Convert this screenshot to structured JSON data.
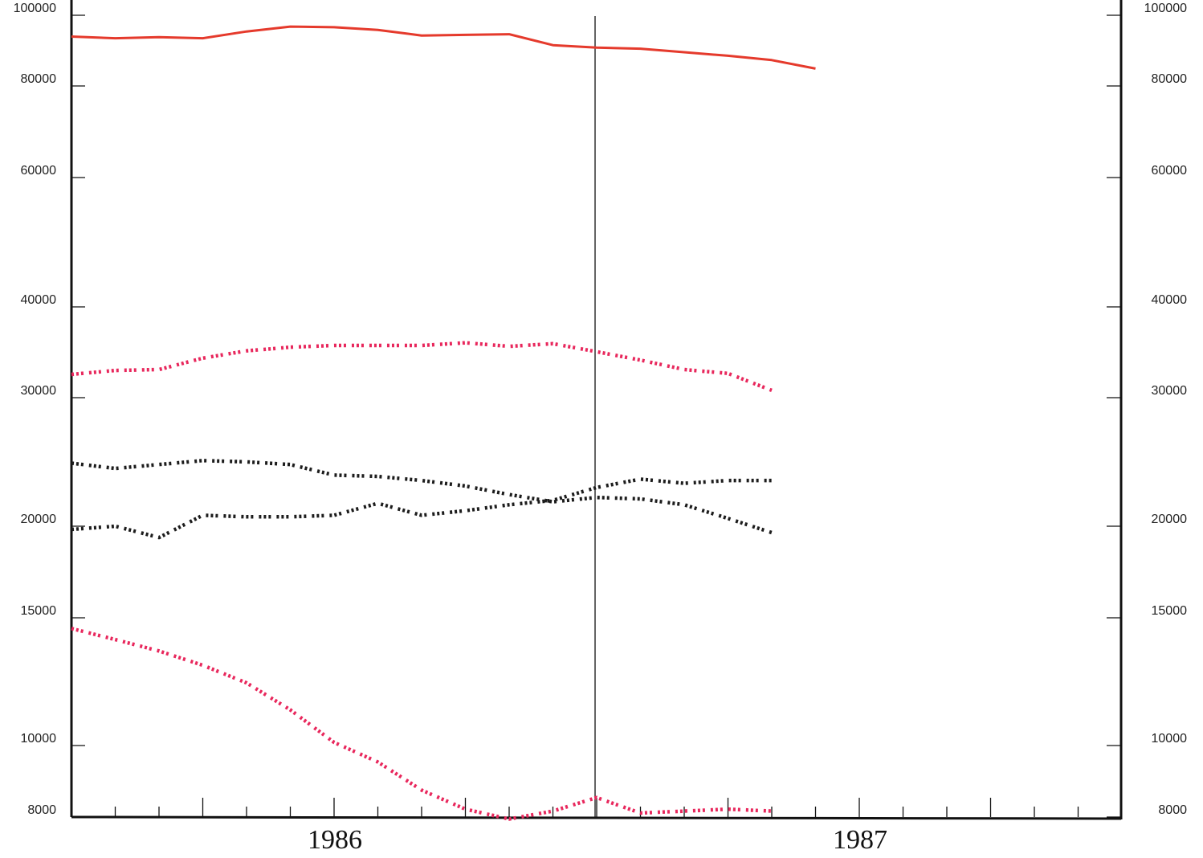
{
  "chart_data": {
    "type": "line",
    "title": "",
    "xlabel": "",
    "ylabel": "",
    "y_scale": "log",
    "ylim": [
      8000,
      100000
    ],
    "y_ticks": [
      "100000",
      "80000",
      "60000",
      "40000",
      "30000",
      "20000",
      "15000",
      "10000",
      "8000"
    ],
    "x_year_labels": [
      "1986",
      "1987"
    ],
    "x_range_months": 24,
    "grid": false,
    "colors": {
      "red": "#e53a2c",
      "pink": "#e8275c",
      "black": "#1c1c1c"
    },
    "series": [
      {
        "style": "solid",
        "color": "red",
        "x": [
          0,
          1,
          2,
          3,
          4,
          5,
          6,
          7,
          8,
          9,
          10,
          11,
          12,
          13,
          14,
          15,
          16,
          17
        ],
        "y": [
          93500,
          93000,
          93300,
          93000,
          95000,
          96500,
          96300,
          95500,
          93800,
          94000,
          94200,
          91000,
          90300,
          90000,
          89000,
          88000,
          86800,
          84500
        ]
      },
      {
        "style": "dotted",
        "color": "pink",
        "x": [
          0,
          1,
          2,
          3,
          4,
          5,
          6,
          7,
          8,
          9,
          10,
          11,
          12,
          13,
          14,
          15,
          16
        ],
        "y": [
          32300,
          32700,
          32800,
          34000,
          34800,
          35200,
          35400,
          35400,
          35400,
          35700,
          35300,
          35600,
          34700,
          33800,
          32800,
          32400,
          30700
        ]
      },
      {
        "style": "dotted",
        "color": "black",
        "x": [
          0,
          1,
          2,
          3,
          4,
          5,
          6,
          7,
          8,
          9,
          10,
          11,
          12,
          13,
          14,
          15,
          16
        ],
        "y": [
          24400,
          24000,
          24300,
          24600,
          24500,
          24300,
          23500,
          23400,
          23100,
          22700,
          22100,
          21600,
          21900,
          21800,
          21400,
          20500,
          19600
        ]
      },
      {
        "style": "dotted",
        "color": "black",
        "x": [
          0,
          1,
          2,
          3,
          4,
          5,
          6,
          7,
          8,
          9,
          10,
          11,
          12,
          13,
          14,
          15,
          16
        ],
        "y": [
          19800,
          20000,
          19300,
          20700,
          20600,
          20600,
          20700,
          21500,
          20700,
          21000,
          21400,
          21700,
          22600,
          23200,
          22900,
          23100,
          23100
        ]
      },
      {
        "style": "dotted",
        "color": "pink",
        "x": [
          0,
          1,
          2,
          3,
          4,
          5,
          6,
          7,
          8,
          9,
          10,
          11,
          12,
          13,
          14,
          15,
          16
        ],
        "y": [
          14500,
          14000,
          13500,
          12900,
          12200,
          11200,
          10100,
          9500,
          8700,
          8200,
          7950,
          8150,
          8500,
          8100,
          8150,
          8200,
          8150
        ]
      }
    ]
  }
}
